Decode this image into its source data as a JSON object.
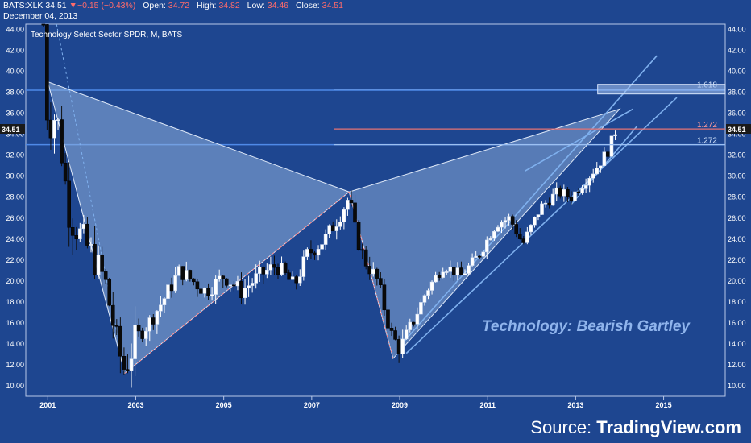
{
  "header": {
    "symbol": "BATS:XLK",
    "last": "34.51",
    "change": "−0.15 (−0.43%)",
    "open_label": "Open:",
    "open": "34.72",
    "high_label": "High:",
    "high": "34.82",
    "low_label": "Low:",
    "low": "34.46",
    "close_label": "Close:",
    "close": "34.51",
    "date": "December 04, 2013",
    "chart_name": "Technology Select Sector SPDR, M, BATS"
  },
  "annotation": "Technology: Bearish Gartley",
  "source_prefix": "Source: ",
  "source_name": "TradingView.com",
  "colors": {
    "background": "#1e4690",
    "up_candle": "#ffffff",
    "down_candle": "#0a0a0a",
    "pattern_fill": "#8fb0dc",
    "channel": "#7fb0ee",
    "fib_blue": "#4f8ae8",
    "fib_red": "#e57373"
  },
  "chart_data": {
    "type": "candlestick",
    "title": "Technology Select Sector SPDR, M, BATS",
    "x_tick_labels": [
      "2001",
      "2003",
      "2005",
      "2007",
      "2009",
      "2011",
      "2013",
      "2015"
    ],
    "y_tick_labels": [
      "10.00",
      "12.00",
      "14.00",
      "16.00",
      "18.00",
      "20.00",
      "22.00",
      "24.00",
      "26.00",
      "28.00",
      "30.00",
      "32.00",
      "34.00",
      "36.00",
      "38.00",
      "40.00",
      "42.00",
      "44.00"
    ],
    "ylim": [
      9,
      44.5
    ],
    "last_price_label": "34.51",
    "price_path": [
      [
        2000.9,
        44.5
      ],
      [
        2001.0,
        34.5
      ],
      [
        2001.2,
        36.0
      ],
      [
        2001.5,
        26.0
      ],
      [
        2001.8,
        24.0
      ],
      [
        2002.0,
        22.5
      ],
      [
        2002.3,
        20.0
      ],
      [
        2002.6,
        13.5
      ],
      [
        2002.75,
        11.5
      ],
      [
        2003.0,
        14.5
      ],
      [
        2003.3,
        16.0
      ],
      [
        2003.6,
        18.0
      ],
      [
        2004.0,
        21.0
      ],
      [
        2004.3,
        20.0
      ],
      [
        2004.6,
        19.0
      ],
      [
        2005.0,
        20.5
      ],
      [
        2005.4,
        19.0
      ],
      [
        2005.8,
        20.5
      ],
      [
        2006.2,
        21.5
      ],
      [
        2006.6,
        19.5
      ],
      [
        2006.9,
        22.5
      ],
      [
        2007.3,
        24.0
      ],
      [
        2007.6,
        26.0
      ],
      [
        2007.85,
        28.0
      ],
      [
        2008.0,
        24.5
      ],
      [
        2008.2,
        22.0
      ],
      [
        2008.5,
        20.0
      ],
      [
        2008.8,
        15.0
      ],
      [
        2009.0,
        13.5
      ],
      [
        2009.3,
        16.0
      ],
      [
        2009.6,
        19.0
      ],
      [
        2010.0,
        21.5
      ],
      [
        2010.4,
        20.5
      ],
      [
        2010.8,
        22.5
      ],
      [
        2011.2,
        25.5
      ],
      [
        2011.5,
        26.0
      ],
      [
        2011.8,
        23.5
      ],
      [
        2012.2,
        27.0
      ],
      [
        2012.6,
        28.5
      ],
      [
        2012.9,
        28.0
      ],
      [
        2013.2,
        29.5
      ],
      [
        2013.5,
        31.0
      ],
      [
        2013.75,
        32.5
      ],
      [
        2013.92,
        34.51
      ]
    ],
    "gartley_pattern": {
      "X": [
        2001.0,
        39.0
      ],
      "A": [
        2002.75,
        11.2
      ],
      "B": [
        2007.85,
        28.5
      ],
      "C": [
        2008.85,
        12.6
      ],
      "D": [
        2014.0,
        36.4
      ]
    },
    "fib_levels": [
      {
        "label": "1.618",
        "value": 38.3,
        "color": "blue"
      },
      {
        "label": "1.272",
        "value": 34.5,
        "color": "red"
      },
      {
        "label": "1.272",
        "value": 33.0,
        "color": "blue"
      }
    ],
    "horizontal_lines": [
      {
        "value": 38.2,
        "color": "blue"
      },
      {
        "value": 33.0,
        "color": "blue"
      }
    ],
    "grid": false
  }
}
